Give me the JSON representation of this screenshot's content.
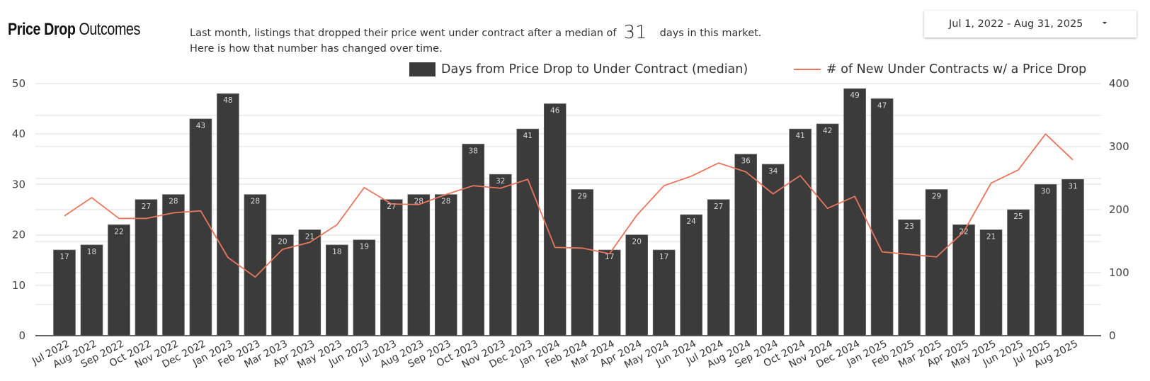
{
  "header": {
    "title_bold": "Price Drop",
    "title_light": "Outcomes",
    "description_line1_prefix": "Last month,  listings that dropped their price went under contract after a median of",
    "description_highlight": "31",
    "description_line1_suffix": "days in this market.",
    "description_line2": "Here is how that number has changed over time."
  },
  "date_range": {
    "label": "Jul 1, 2022 - Aug 31, 2025",
    "icon": "caret-down-icon"
  },
  "colors": {
    "bar": "#3b3b3b",
    "line": "#e8765c",
    "grid": "#e3e3e3"
  },
  "chart_data": {
    "type": "bar",
    "title": "Price Drop Outcomes",
    "legend_position": "top-right",
    "grid": true,
    "categories": [
      "Jul 2022",
      "Aug 2022",
      "Sep 2022",
      "Oct 2022",
      "Nov 2022",
      "Dec 2022",
      "Jan 2023",
      "Feb 2023",
      "Mar 2023",
      "Apr 2023",
      "May 2023",
      "Jun 2023",
      "Jul 2023",
      "Aug 2023",
      "Sep 2023",
      "Oct 2023",
      "Nov 2023",
      "Dec 2023",
      "Jan 2024",
      "Feb 2024",
      "Mar 2024",
      "Apr 2024",
      "May 2024",
      "Jun 2024",
      "Jul 2024",
      "Aug 2024",
      "Sep 2024",
      "Oct 2024",
      "Nov 2024",
      "Dec 2024",
      "Jan 2025",
      "Feb 2025",
      "Mar 2025",
      "Apr 2025",
      "May 2025",
      "Jun 2025",
      "Jul 2025",
      "Aug 2025"
    ],
    "series": [
      {
        "name": "Days from Price Drop to Under Contract (median)",
        "type": "bar",
        "axis": "left",
        "values": [
          17,
          18,
          22,
          27,
          28,
          43,
          48,
          28,
          20,
          21,
          18,
          19,
          27,
          28,
          28,
          38,
          32,
          41,
          46,
          29,
          17,
          20,
          17,
          24,
          27,
          36,
          34,
          41,
          42,
          49,
          47,
          23,
          29,
          22,
          21,
          25,
          30,
          31
        ]
      },
      {
        "name": "# of New Under Contracts w/ a Price Drop",
        "type": "line",
        "axis": "right",
        "values": [
          190,
          219,
          186,
          186,
          195,
          198,
          124,
          93,
          137,
          148,
          176,
          235,
          209,
          208,
          224,
          238,
          234,
          248,
          140,
          139,
          130,
          191,
          238,
          253,
          274,
          260,
          225,
          254,
          202,
          221,
          133,
          129,
          125,
          165,
          242,
          263,
          320,
          279
        ]
      }
    ],
    "y_left": {
      "ylim": [
        0,
        50
      ],
      "ticks": [
        "0",
        "10",
        "20",
        "30",
        "40",
        "50"
      ]
    },
    "y_right": {
      "ylim": [
        0,
        400
      ],
      "ticks": [
        "0",
        "100",
        "200",
        "300",
        "400"
      ]
    }
  }
}
